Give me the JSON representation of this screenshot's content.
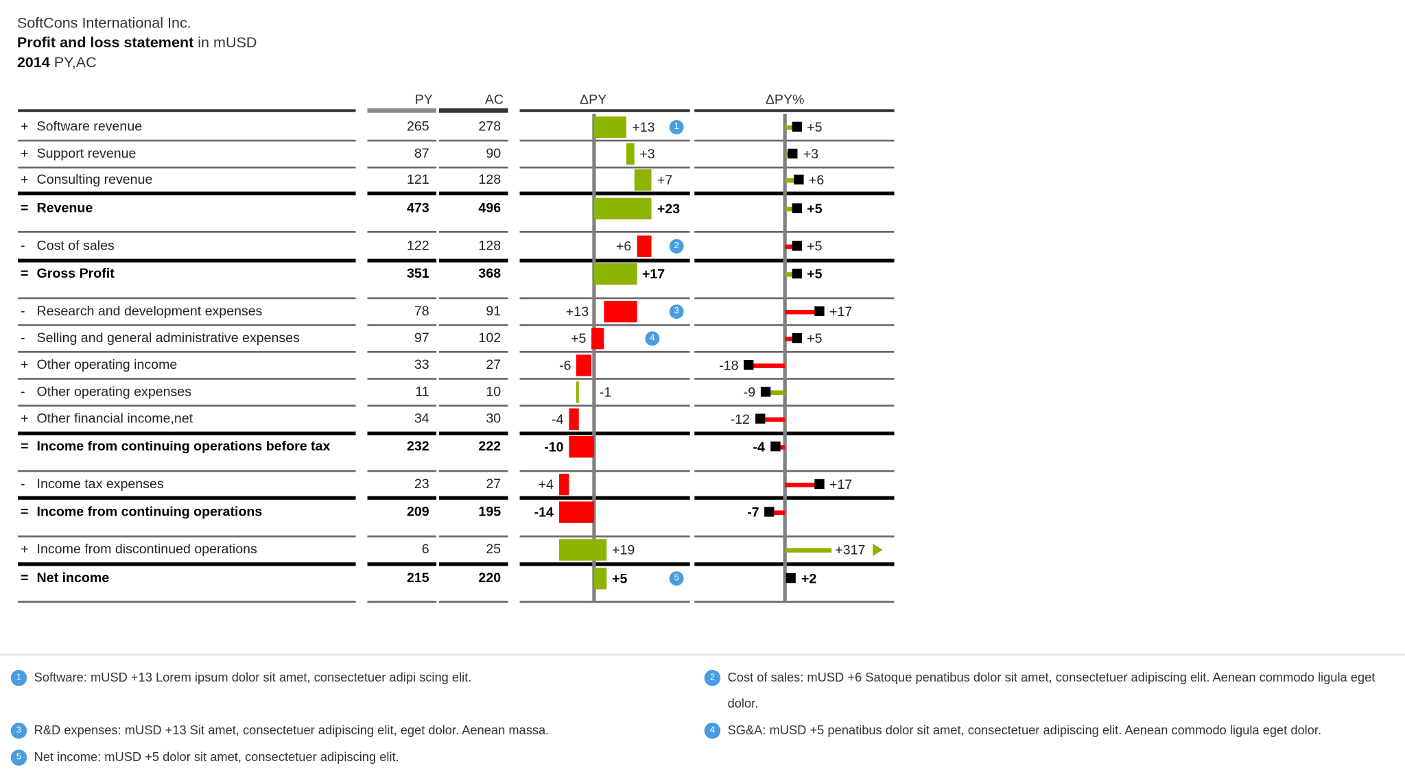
{
  "header": {
    "company": "SoftCons International Inc.",
    "title_bold": "Profit and loss statement",
    "title_rest": " in mUSD",
    "year_bold": "2014",
    "year_rest": " PY,AC"
  },
  "colors": {
    "positive": "#8cb400",
    "negative": "#ff0000",
    "marker": "#000000",
    "axis": "#808080",
    "footnote": "#4a9de0",
    "py": "#8a8a8a",
    "ac": "#333333"
  },
  "chart_data": {
    "type": "table",
    "columns": [
      "PY",
      "AC",
      "ΔPY",
      "ΔPY%"
    ],
    "rows": [
      {
        "sign": "+",
        "label": "Software revenue",
        "py": "265",
        "ac": "278",
        "impact": 13,
        "dpy": "+13",
        "pct": 5,
        "pct_label": "+5",
        "total": false,
        "footnote": "1"
      },
      {
        "sign": "+",
        "label": "Support revenue",
        "py": "87",
        "ac": "90",
        "impact": 3,
        "dpy": "+3",
        "pct": 3,
        "pct_label": "+3",
        "total": false
      },
      {
        "sign": "+",
        "label": "Consulting revenue",
        "py": "121",
        "ac": "128",
        "impact": 7,
        "dpy": "+7",
        "pct": 6,
        "pct_label": "+6",
        "total": false
      },
      {
        "sign": "=",
        "label": "Revenue",
        "py": "473",
        "ac": "496",
        "impact": 23,
        "dpy": "+23",
        "pct": 5,
        "pct_label": "+5",
        "total": true
      },
      {
        "sign": "-",
        "label": "Cost of sales",
        "py": "122",
        "ac": "128",
        "impact": -6,
        "dpy": "+6",
        "pct": 5,
        "pct_label": "+5",
        "total": false,
        "footnote": "2"
      },
      {
        "sign": "=",
        "label": "Gross Profit",
        "py": "351",
        "ac": "368",
        "impact": 17,
        "dpy": "+17",
        "pct": 5,
        "pct_label": "+5",
        "total": true
      },
      {
        "sign": "-",
        "label": "Research and development expenses",
        "py": "78",
        "ac": "91",
        "impact": -13,
        "dpy": "+13",
        "pct": 17,
        "pct_label": "+17",
        "total": false,
        "footnote": "3"
      },
      {
        "sign": "-",
        "label": "Selling and general administrative expenses",
        "py": "97",
        "ac": "102",
        "impact": -5,
        "dpy": "+5",
        "pct": 5,
        "pct_label": "+5",
        "total": false,
        "footnote": "4"
      },
      {
        "sign": "+",
        "label": "Other operating income",
        "py": "33",
        "ac": "27",
        "impact": -6,
        "dpy": "-6",
        "pct": -18,
        "pct_label": "-18",
        "total": false
      },
      {
        "sign": "-",
        "label": "Other operating expenses",
        "py": "11",
        "ac": "10",
        "impact": 1,
        "dpy": "-1",
        "pct": -9,
        "pct_label": "-9",
        "total": false
      },
      {
        "sign": "+",
        "label": "Other financial income,net",
        "py": "34",
        "ac": "30",
        "impact": -4,
        "dpy": "-4",
        "pct": -12,
        "pct_label": "-12",
        "total": false
      },
      {
        "sign": "=",
        "label": "Income from continuing operations before tax",
        "py": "232",
        "ac": "222",
        "impact": -10,
        "dpy": "-10",
        "pct": -4,
        "pct_label": "-4",
        "total": true
      },
      {
        "sign": "-",
        "label": "Income tax expenses",
        "py": "23",
        "ac": "27",
        "impact": -4,
        "dpy": "+4",
        "pct": 17,
        "pct_label": "+17",
        "total": false
      },
      {
        "sign": "=",
        "label": "Income from continuing operations",
        "py": "209",
        "ac": "195",
        "impact": -14,
        "dpy": "-14",
        "pct": -7,
        "pct_label": "-7",
        "total": true
      },
      {
        "sign": "+",
        "label": "Income from discontinued operations",
        "py": "6",
        "ac": "25",
        "impact": 19,
        "dpy": "+19",
        "pct": 317,
        "pct_label": "+317",
        "total": false
      },
      {
        "sign": "=",
        "label": "Net income",
        "py": "215",
        "ac": "220",
        "impact": 5,
        "dpy": "+5",
        "pct": 2,
        "pct_label": "+2",
        "total": true,
        "footnote": "5"
      }
    ]
  },
  "footnotes": [
    {
      "num": "1",
      "text": "Software: mUSD +13 Lorem ipsum dolor sit amet, consectetuer adipi scing elit."
    },
    {
      "num": "2",
      "text": "Cost of sales: mUSD +6 Satoque penatibus dolor sit amet, consectetuer adipiscing elit. Aenean commodo ligula eget dolor."
    },
    {
      "num": "3",
      "text": "R&D expenses: mUSD +13 Sit amet, consectetuer adipiscing elit, eget dolor. Aenean massa."
    },
    {
      "num": "4",
      "text": "SG&A: mUSD +5 penatibus dolor sit amet, consectetuer adipiscing elit. Aenean commodo ligula eget dolor."
    },
    {
      "num": "5",
      "text": "Net income: mUSD +5 dolor sit amet, consectetuer adipiscing elit."
    }
  ]
}
